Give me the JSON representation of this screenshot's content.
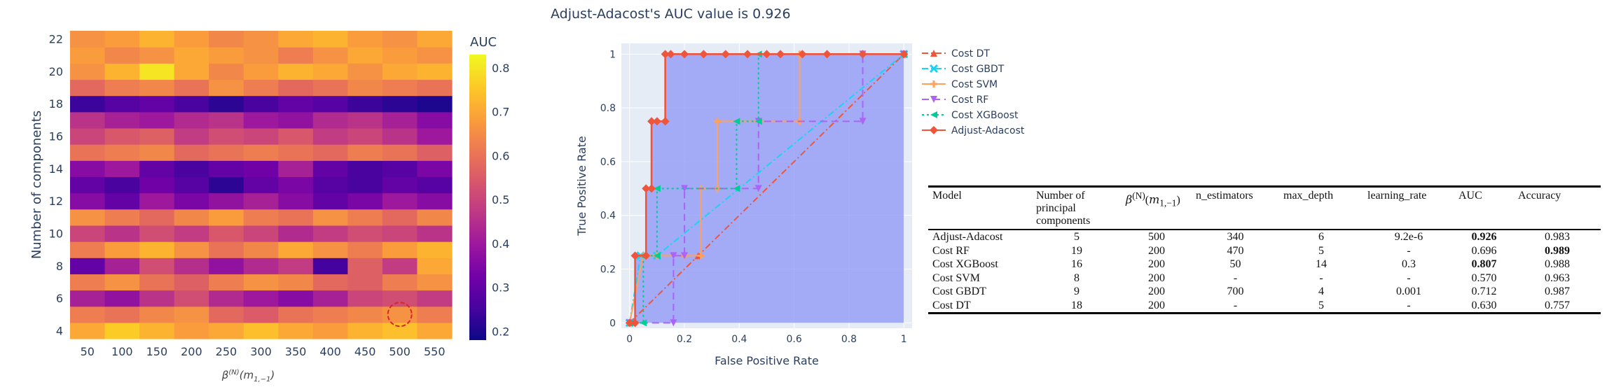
{
  "chart_data": [
    {
      "type": "heatmap",
      "title": "",
      "xlabel": "β(N)(m1,−1)",
      "ylabel": "Number of components",
      "colorbar_title": "AUC",
      "x_ticks": [
        "50",
        "100",
        "150",
        "200",
        "250",
        "300",
        "350",
        "400",
        "450",
        "500",
        "550"
      ],
      "y_ticks": [
        "4",
        "6",
        "8",
        "10",
        "12",
        "14",
        "16",
        "18",
        "20",
        "22"
      ],
      "colorbar_ticks": [
        "0.2",
        "0.3",
        "0.4",
        "0.5",
        "0.6",
        "0.7",
        "0.8"
      ],
      "xlim": [
        25,
        575
      ],
      "ylim": [
        3.5,
        22.5
      ],
      "zlim": [
        0.18,
        0.83
      ],
      "x": [
        50,
        100,
        150,
        200,
        250,
        300,
        350,
        400,
        450,
        500,
        550
      ],
      "y": [
        4,
        5,
        6,
        7,
        8,
        9,
        10,
        11,
        12,
        13,
        14,
        15,
        16,
        17,
        18,
        19,
        20,
        21,
        22
      ],
      "z": [
        [
          0.7,
          0.76,
          0.72,
          0.68,
          0.7,
          0.74,
          0.7,
          0.68,
          0.72,
          0.74,
          0.7
        ],
        [
          0.62,
          0.6,
          0.64,
          0.66,
          0.58,
          0.55,
          0.6,
          0.62,
          0.64,
          0.66,
          0.62
        ],
        [
          0.42,
          0.38,
          0.46,
          0.52,
          0.44,
          0.4,
          0.36,
          0.42,
          0.5,
          0.52,
          0.48
        ],
        [
          0.62,
          0.66,
          0.6,
          0.56,
          0.62,
          0.66,
          0.64,
          0.58,
          0.56,
          0.62,
          0.66
        ],
        [
          0.3,
          0.42,
          0.52,
          0.45,
          0.38,
          0.44,
          0.48,
          0.25,
          0.56,
          0.48,
          0.7
        ],
        [
          0.62,
          0.68,
          0.72,
          0.66,
          0.6,
          0.64,
          0.7,
          0.66,
          0.62,
          0.68,
          0.72
        ],
        [
          0.5,
          0.46,
          0.52,
          0.48,
          0.54,
          0.5,
          0.44,
          0.48,
          0.52,
          0.5,
          0.46
        ],
        [
          0.66,
          0.62,
          0.58,
          0.64,
          0.68,
          0.62,
          0.6,
          0.66,
          0.62,
          0.58,
          0.64
        ],
        [
          0.36,
          0.3,
          0.4,
          0.34,
          0.38,
          0.42,
          0.36,
          0.3,
          0.34,
          0.4,
          0.36
        ],
        [
          0.3,
          0.26,
          0.32,
          0.28,
          0.22,
          0.3,
          0.34,
          0.28,
          0.26,
          0.3,
          0.28
        ],
        [
          0.36,
          0.4,
          0.3,
          0.26,
          0.3,
          0.32,
          0.42,
          0.3,
          0.26,
          0.28,
          0.34
        ],
        [
          0.6,
          0.62,
          0.64,
          0.58,
          0.6,
          0.62,
          0.6,
          0.58,
          0.62,
          0.6,
          0.56
        ],
        [
          0.5,
          0.54,
          0.56,
          0.48,
          0.52,
          0.5,
          0.54,
          0.48,
          0.5,
          0.46,
          0.4
        ],
        [
          0.46,
          0.42,
          0.4,
          0.44,
          0.46,
          0.4,
          0.38,
          0.44,
          0.46,
          0.42,
          0.36
        ],
        [
          0.24,
          0.28,
          0.3,
          0.26,
          0.22,
          0.26,
          0.3,
          0.28,
          0.24,
          0.22,
          0.2
        ],
        [
          0.58,
          0.62,
          0.64,
          0.6,
          0.66,
          0.62,
          0.58,
          0.6,
          0.64,
          0.62,
          0.6
        ],
        [
          0.66,
          0.72,
          0.8,
          0.7,
          0.64,
          0.68,
          0.72,
          0.7,
          0.66,
          0.7,
          0.72
        ],
        [
          0.68,
          0.64,
          0.66,
          0.7,
          0.68,
          0.66,
          0.62,
          0.66,
          0.7,
          0.68,
          0.66
        ],
        [
          0.66,
          0.68,
          0.72,
          0.68,
          0.64,
          0.66,
          0.7,
          0.72,
          0.68,
          0.66,
          0.7
        ]
      ],
      "highlight": {
        "x": 500,
        "y": 5,
        "color": "#d62728"
      },
      "colorscale": [
        "#0d0887",
        "#46039f",
        "#7201a8",
        "#9c179e",
        "#bd3786",
        "#d8576b",
        "#ed7953",
        "#fb9f3a",
        "#fdca26",
        "#f0f921"
      ]
    },
    {
      "type": "line",
      "title": "Adjust-Adacost's  AUC value is 0.926",
      "xlabel": "False Positive Rate",
      "ylabel": "True Positive Rate",
      "xlim": [
        -0.03,
        1.03
      ],
      "ylim": [
        -0.02,
        1.04
      ],
      "x_ticks": [
        "0",
        "0.2",
        "0.4",
        "0.6",
        "0.8",
        "1"
      ],
      "y_ticks": [
        "0",
        "0.2",
        "0.4",
        "0.6",
        "0.8",
        "1"
      ],
      "legend_position": "right",
      "series": [
        {
          "name": "Cost DT",
          "color": "#ef553b",
          "dash": "dashdot",
          "marker": "triangle-up",
          "x": [
            0,
            0.25,
            1
          ],
          "y": [
            0,
            0.25,
            1
          ]
        },
        {
          "name": "Cost GBDT",
          "color": "#19d3f3",
          "dash": "dashdot",
          "marker": "x",
          "x": [
            0,
            0.04,
            0.1,
            1
          ],
          "y": [
            0,
            0.25,
            0.25,
            1
          ]
        },
        {
          "name": "Cost SVM",
          "color": "#ffa15a",
          "dash": "solid",
          "marker": "plus",
          "x": [
            0,
            0.05,
            0.1,
            0.2,
            0.26,
            0.26,
            0.32,
            0.32,
            0.62,
            0.62,
            1
          ],
          "y": [
            0,
            0.25,
            0.25,
            0.25,
            0.25,
            0.5,
            0.5,
            0.75,
            0.75,
            1,
            1
          ]
        },
        {
          "name": "Cost RF",
          "color": "#ab63fa",
          "dash": "dash",
          "marker": "triangle-down",
          "x": [
            0,
            0.16,
            0.16,
            0.2,
            0.2,
            0.47,
            0.47,
            0.85,
            0.85,
            1
          ],
          "y": [
            0,
            0,
            0.25,
            0.25,
            0.5,
            0.5,
            0.75,
            0.75,
            1,
            1
          ]
        },
        {
          "name": "Cost XGBoost",
          "color": "#00cc96",
          "dash": "dot",
          "marker": "triangle-left",
          "x": [
            0,
            0.05,
            0.05,
            0.1,
            0.1,
            0.39,
            0.39,
            0.47,
            0.47,
            1
          ],
          "y": [
            0,
            0,
            0.25,
            0.25,
            0.5,
            0.5,
            0.75,
            0.75,
            1,
            1
          ]
        },
        {
          "name": "Adjust-Adacost",
          "color": "#ef553b",
          "dash": "solid",
          "marker": "diamond",
          "x": [
            0,
            0.02,
            0.02,
            0.06,
            0.06,
            0.08,
            0.08,
            0.1,
            0.13,
            0.13,
            0.15,
            0.2,
            0.27,
            0.35,
            0.43,
            0.5,
            0.55,
            0.63,
            0.72,
            0.85,
            1
          ],
          "y": [
            0,
            0,
            0.25,
            0.25,
            0.5,
            0.5,
            0.75,
            0.75,
            0.75,
            1,
            1,
            1,
            1,
            1,
            1,
            1,
            1,
            1,
            1,
            1,
            1
          ]
        }
      ],
      "fill": {
        "series": "Adjust-Adacost",
        "color": "#8c94f5"
      }
    },
    {
      "type": "table",
      "columns": [
        "Model",
        "Number of principal components",
        "β(N)(m1,−1)",
        "n_estimators",
        "max_depth",
        "learning_rate",
        "AUC",
        "Accuracy"
      ],
      "rows": [
        [
          "Adjust-Adacost",
          "5",
          "500",
          "340",
          "6",
          "9.2e-6",
          "0.926",
          "0.983"
        ],
        [
          "Cost RF",
          "19",
          "200",
          "470",
          "5",
          "-",
          "0.696",
          "0.989"
        ],
        [
          "Cost XGBoost",
          "16",
          "200",
          "50",
          "14",
          "0.3",
          "0.807",
          "0.988"
        ],
        [
          "Cost SVM",
          "8",
          "200",
          "-",
          "-",
          "-",
          "0.570",
          "0.963"
        ],
        [
          "Cost GBDT",
          "9",
          "200",
          "700",
          "4",
          "0.001",
          "0.712",
          "0.987"
        ],
        [
          "Cost DT",
          "18",
          "200",
          "-",
          "5",
          "-",
          "0.630",
          "0.757"
        ]
      ],
      "bold_cells": [
        [
          0,
          6
        ],
        [
          1,
          7
        ],
        [
          2,
          6
        ]
      ]
    }
  ]
}
